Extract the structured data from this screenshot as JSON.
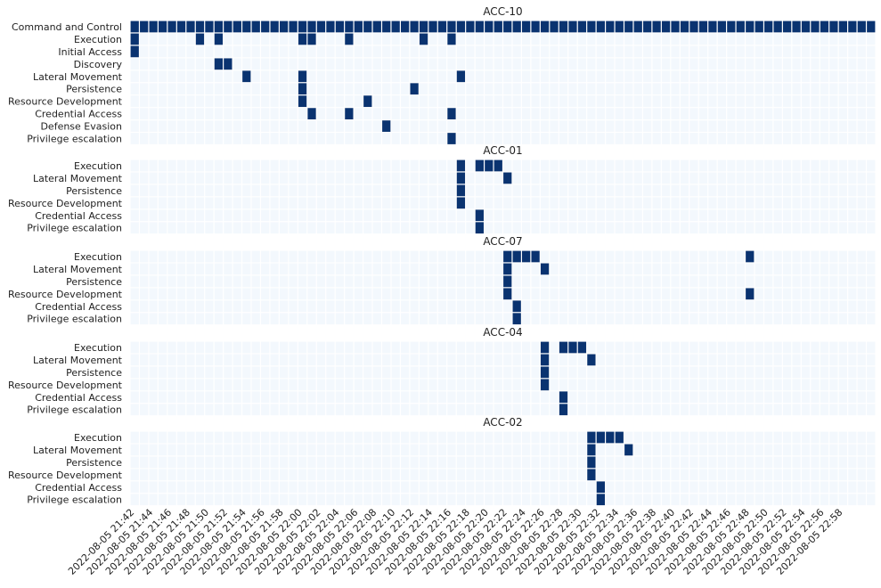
{
  "chart_data": {
    "type": "heatmap",
    "colors": {
      "empty": "#f3f8fd",
      "filled": "#0a3370",
      "gap": "#ffffff"
    },
    "x_tick_labels": [
      "2022-08-05 21:42",
      "2022-08-05 21:44",
      "2022-08-05 21:46",
      "2022-08-05 21:48",
      "2022-08-05 21:50",
      "2022-08-05 21:52",
      "2022-08-05 21:54",
      "2022-08-05 21:56",
      "2022-08-05 21:58",
      "2022-08-05 22:00",
      "2022-08-05 22:02",
      "2022-08-05 22:04",
      "2022-08-05 22:06",
      "2022-08-05 22:08",
      "2022-08-05 22:10",
      "2022-08-05 22:12",
      "2022-08-05 22:14",
      "2022-08-05 22:16",
      "2022-08-05 22:18",
      "2022-08-05 22:20",
      "2022-08-05 22:22",
      "2022-08-05 22:24",
      "2022-08-05 22:26",
      "2022-08-05 22:28",
      "2022-08-05 22:30",
      "2022-08-05 22:32",
      "2022-08-05 22:34",
      "2022-08-05 22:36",
      "2022-08-05 22:38",
      "2022-08-05 22:40",
      "2022-08-05 22:42",
      "2022-08-05 22:44",
      "2022-08-05 22:46",
      "2022-08-05 22:48",
      "2022-08-05 22:50",
      "2022-08-05 22:52",
      "2022-08-05 22:54",
      "2022-08-05 22:56",
      "2022-08-05 22:58"
    ],
    "panels": [
      {
        "title": "ACC-10",
        "rows": [
          {
            "label": "Command and Control",
            "active": "all"
          },
          {
            "label": "Execution",
            "active": [
              0,
              7,
              9,
              18,
              19,
              23,
              31,
              34
            ]
          },
          {
            "label": "Initial Access",
            "active": [
              0
            ]
          },
          {
            "label": "Discovery",
            "active": [
              9,
              10
            ]
          },
          {
            "label": "Lateral Movement",
            "active": [
              12,
              18,
              35
            ]
          },
          {
            "label": "Persistence",
            "active": [
              18,
              30
            ]
          },
          {
            "label": "Resource Development",
            "active": [
              18,
              25
            ]
          },
          {
            "label": "Credential Access",
            "active": [
              19,
              23,
              34
            ]
          },
          {
            "label": "Defense Evasion",
            "active": [
              27
            ]
          },
          {
            "label": "Privilege escalation",
            "active": [
              34
            ]
          }
        ]
      },
      {
        "title": "ACC-01",
        "rows": [
          {
            "label": "Execution",
            "active": [
              35,
              37,
              38,
              39
            ]
          },
          {
            "label": "Lateral Movement",
            "active": [
              35,
              40
            ]
          },
          {
            "label": "Persistence",
            "active": [
              35
            ]
          },
          {
            "label": "Resource Development",
            "active": [
              35
            ]
          },
          {
            "label": "Credential Access",
            "active": [
              37
            ]
          },
          {
            "label": "Privilege escalation",
            "active": [
              37
            ]
          }
        ]
      },
      {
        "title": "ACC-07",
        "rows": [
          {
            "label": "Execution",
            "active": [
              40,
              41,
              42,
              43,
              66
            ]
          },
          {
            "label": "Lateral Movement",
            "active": [
              40,
              44
            ]
          },
          {
            "label": "Persistence",
            "active": [
              40
            ]
          },
          {
            "label": "Resource Development",
            "active": [
              40,
              66
            ]
          },
          {
            "label": "Credential Access",
            "active": [
              41
            ]
          },
          {
            "label": "Privilege escalation",
            "active": [
              41
            ]
          }
        ]
      },
      {
        "title": "ACC-04",
        "rows": [
          {
            "label": "Execution",
            "active": [
              44,
              46,
              47,
              48
            ]
          },
          {
            "label": "Lateral Movement",
            "active": [
              44,
              49
            ]
          },
          {
            "label": "Persistence",
            "active": [
              44
            ]
          },
          {
            "label": "Resource Development",
            "active": [
              44
            ]
          },
          {
            "label": "Credential Access",
            "active": [
              46
            ]
          },
          {
            "label": "Privilege escalation",
            "active": [
              46
            ]
          }
        ]
      },
      {
        "title": "ACC-02",
        "rows": [
          {
            "label": "Execution",
            "active": [
              49,
              50,
              51,
              52
            ]
          },
          {
            "label": "Lateral Movement",
            "active": [
              49,
              53
            ]
          },
          {
            "label": "Persistence",
            "active": [
              49
            ]
          },
          {
            "label": "Resource Development",
            "active": [
              49
            ]
          },
          {
            "label": "Credential Access",
            "active": [
              50
            ]
          },
          {
            "label": "Privilege escalation",
            "active": [
              50
            ]
          }
        ]
      }
    ]
  }
}
